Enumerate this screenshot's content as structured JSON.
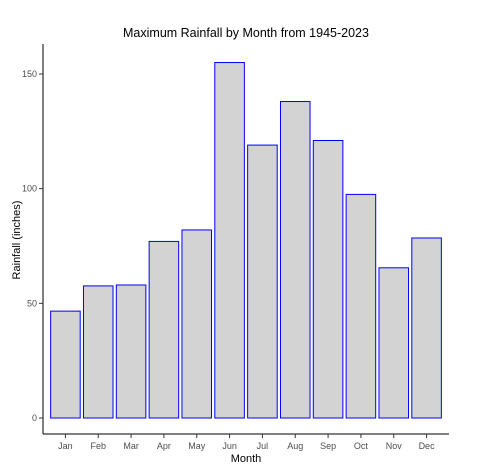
{
  "chart_data": {
    "type": "bar",
    "title": "Maximum Rainfall by Month from 1945-2023",
    "xlabel": "Month",
    "ylabel": "Rainfall (inches)",
    "categories": [
      "Jan",
      "Feb",
      "Mar",
      "Apr",
      "May",
      "Jun",
      "Jul",
      "Aug",
      "Sep",
      "Oct",
      "Nov",
      "Dec"
    ],
    "values": [
      46.6,
      57.6,
      58.0,
      77.0,
      82.0,
      155.0,
      119.0,
      138.0,
      121.0,
      97.5,
      65.5,
      78.5
    ],
    "ylim": [
      0,
      160
    ],
    "yticks": [
      0,
      50,
      100,
      150
    ],
    "grid": false,
    "legend": "none",
    "bar_fill": "#d3d3d3",
    "bar_stroke": "#0000ff"
  }
}
